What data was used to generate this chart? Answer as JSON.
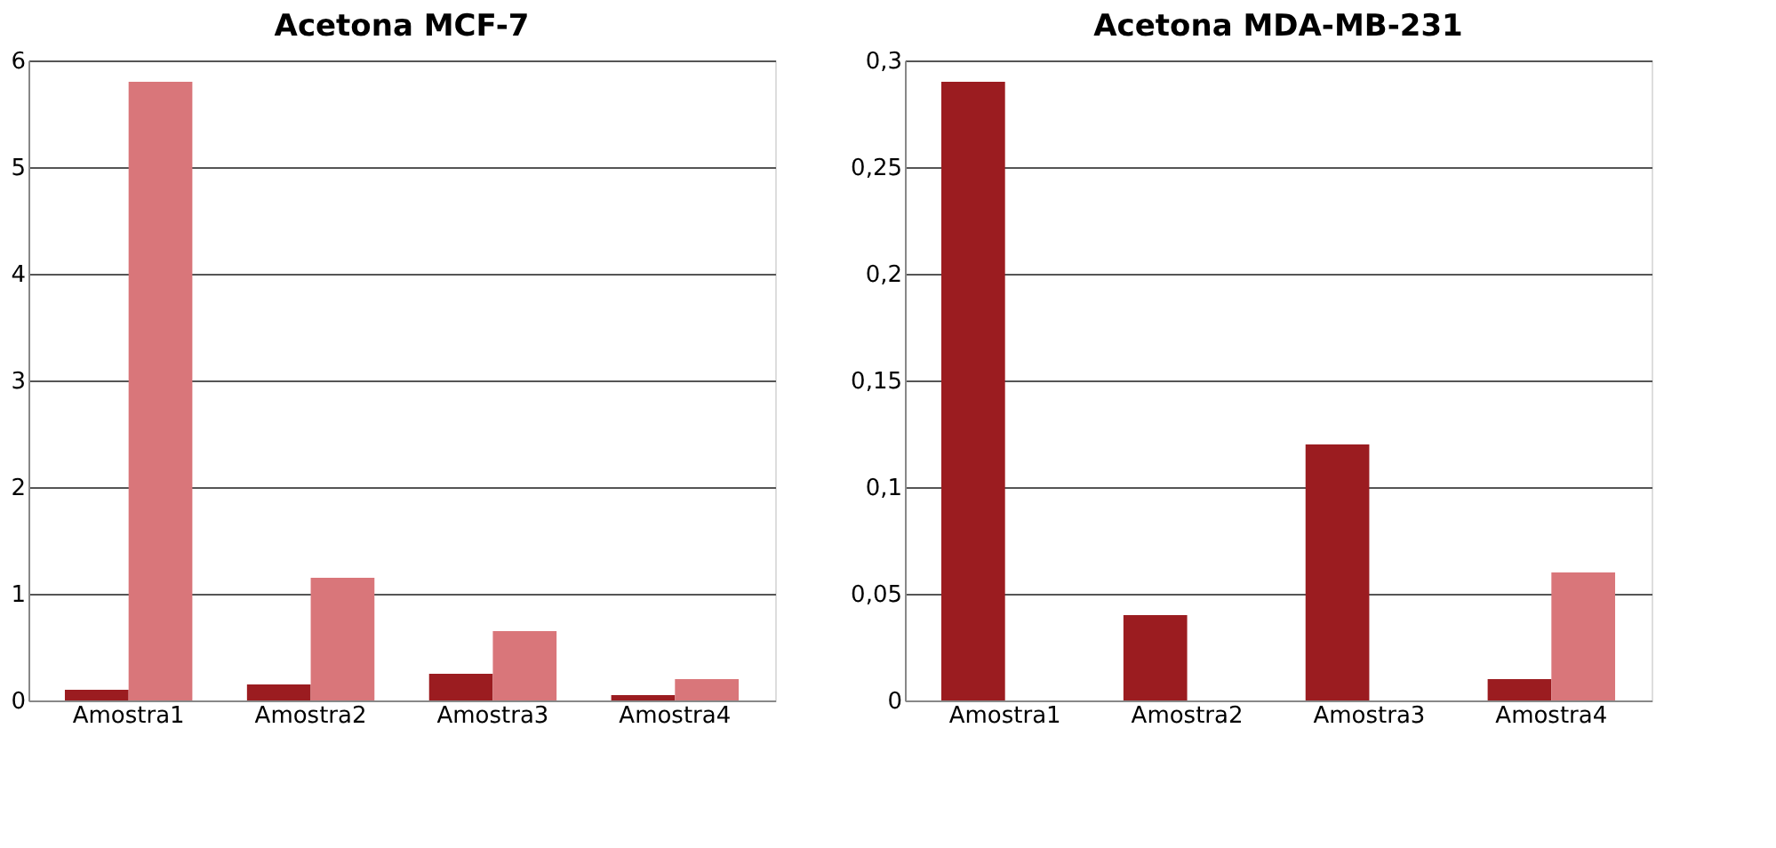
{
  "chart_data": [
    {
      "type": "bar",
      "title": "Acetona  MCF-7",
      "categories": [
        "Amostra1",
        "Amostra2",
        "Amostra3",
        "Amostra4"
      ],
      "series": [
        {
          "color": "#9b1c20",
          "values": [
            0.1,
            0.15,
            0.25,
            0.05
          ]
        },
        {
          "color": "#d9767a",
          "values": [
            5.8,
            1.15,
            0.65,
            0.2
          ]
        }
      ],
      "ylim": [
        0,
        6
      ],
      "yticks": [
        0,
        1,
        2,
        3,
        4,
        5,
        6
      ],
      "grid": "y",
      "legend": false
    },
    {
      "type": "bar",
      "title": "Acetona MDA-MB-231",
      "categories": [
        "Amostra1",
        "Amostra2",
        "Amostra3",
        "Amostra4"
      ],
      "series": [
        {
          "color": "#9b1c20",
          "values": [
            0.29,
            0.04,
            0.12,
            0.01
          ]
        },
        {
          "color": "#d9767a",
          "values": [
            0,
            0,
            0,
            0.06
          ]
        }
      ],
      "ylim": [
        0,
        0.3
      ],
      "yticks": [
        0,
        {
          "value": 0.05,
          "label": "0,05"
        },
        {
          "value": 0.1,
          "label": "0,1"
        },
        {
          "value": 0.15,
          "label": "0,15"
        },
        {
          "value": 0.2,
          "label": "0,2"
        },
        {
          "value": 0.25,
          "label": "0,25"
        },
        {
          "value": 0.3,
          "label": "0,3"
        }
      ],
      "grid": "y",
      "legend": false
    }
  ]
}
